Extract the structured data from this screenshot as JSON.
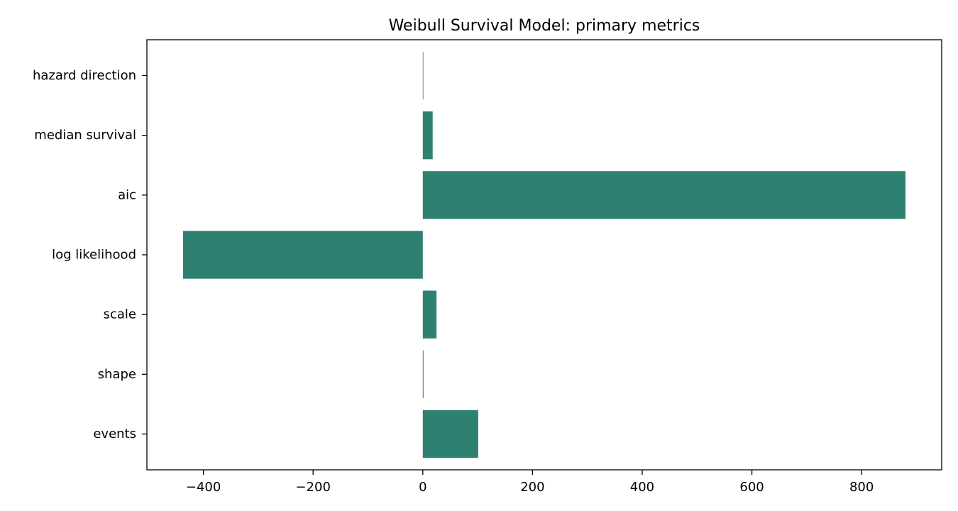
{
  "chart_data": {
    "type": "bar",
    "orientation": "horizontal",
    "title": "Weibull Survival Model: primary metrics",
    "xlabel": "",
    "ylabel": "",
    "categories": [
      "events",
      "shape",
      "scale",
      "log likelihood",
      "aic",
      "median survival",
      "hazard direction"
    ],
    "values": [
      101,
      1.3,
      25,
      -437,
      880,
      18,
      1
    ],
    "xlim": [
      -503,
      946
    ],
    "xticks": [
      -400,
      -200,
      0,
      200,
      400,
      600,
      800
    ],
    "xtick_labels": [
      "−400",
      "−200",
      "0",
      "200",
      "400",
      "600",
      "800"
    ],
    "bar_color": "#2e8170",
    "grid": false,
    "legend": "none"
  }
}
